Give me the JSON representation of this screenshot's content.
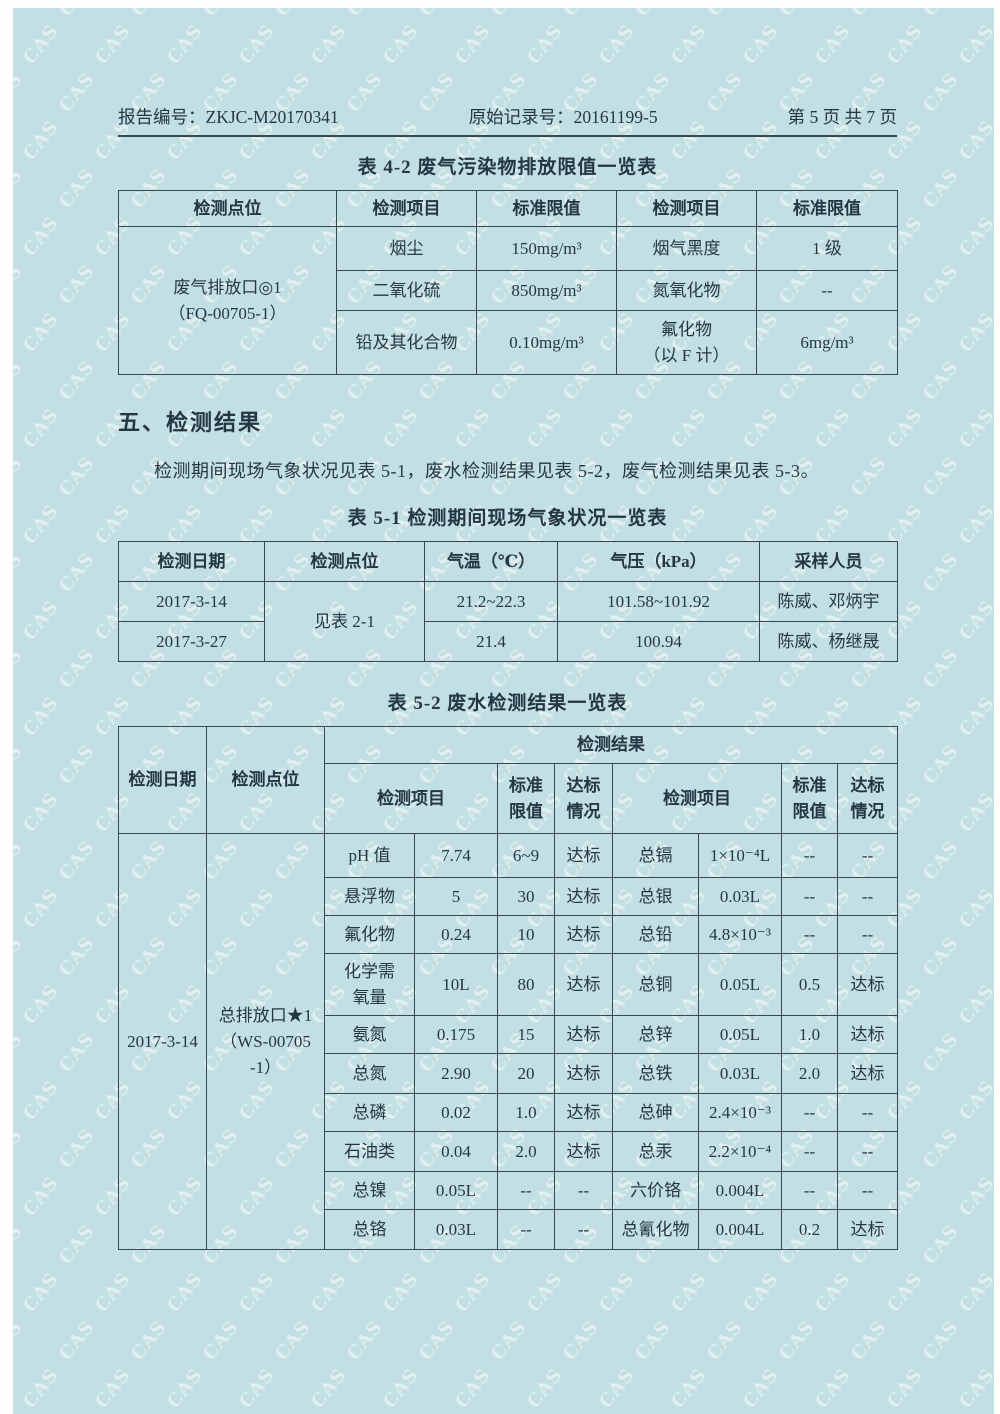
{
  "watermark": {
    "text": "CAS"
  },
  "header": {
    "report_no": "报告编号：ZKJC-M20170341",
    "record_no": "原始记录号：20161199-5",
    "page_info": "第 5 页 共 7 页"
  },
  "table42": {
    "title": "表 4-2  废气污染物排放限值一览表",
    "headers": [
      "检测点位",
      "检测项目",
      "标准限值",
      "检测项目",
      "标准限值"
    ],
    "site_line1": "废气排放口◎1",
    "site_line2": "（FQ-00705-1）",
    "rows": [
      {
        "item1": "烟尘",
        "limit1": "150mg/m³",
        "item2": "烟气黑度",
        "limit2": "1 级"
      },
      {
        "item1": "二氧化硫",
        "limit1": "850mg/m³",
        "item2": "氮氧化物",
        "limit2": "--"
      },
      {
        "item1": "铅及其化合物",
        "limit1": "0.10mg/m³",
        "item2_l1": "氟化物",
        "item2_l2": "（以 F 计）",
        "limit2": "6mg/m³"
      }
    ]
  },
  "section5": {
    "title": "五、检测结果",
    "paragraph": "检测期间现场气象状况见表 5-1，废水检测结果见表 5-2，废气检测结果见表 5-3。"
  },
  "table51": {
    "title": "表 5-1  检测期间现场气象状况一览表",
    "headers": [
      "检测日期",
      "检测点位",
      "气温（℃）",
      "气压（kPa）",
      "采样人员"
    ],
    "site": "见表 2-1",
    "rows": [
      {
        "date": "2017-3-14",
        "temp": "21.2~22.3",
        "pressure": "101.58~101.92",
        "sampler": "陈威、邓炳宇"
      },
      {
        "date": "2017-3-27",
        "temp": "21.4",
        "pressure": "100.94",
        "sampler": "陈威、杨继晟"
      }
    ]
  },
  "table52": {
    "title": "表 5-2  废水检测结果一览表",
    "col_date": "检测日期",
    "col_site": "检测点位",
    "col_result": "检测结果",
    "col_item": "检测项目",
    "col_limit_l1": "标准",
    "col_limit_l2": "限值",
    "col_status_l1": "达标",
    "col_status_l2": "情况",
    "date": "2017-3-14",
    "site_l1": "总排放口★1",
    "site_l2": "（WS-00705",
    "site_l3": "-1）",
    "rows": [
      {
        "item1": "pH 值",
        "val1": "7.74",
        "lim1": "6~9",
        "st1": "达标",
        "item2": "总镉",
        "val2": "1×10⁻⁴L",
        "lim2": "--",
        "st2": "--"
      },
      {
        "item1": "悬浮物",
        "val1": "5",
        "lim1": "30",
        "st1": "达标",
        "item2": "总银",
        "val2": "0.03L",
        "lim2": "--",
        "st2": "--"
      },
      {
        "item1": "氟化物",
        "val1": "0.24",
        "lim1": "10",
        "st1": "达标",
        "item2": "总铅",
        "val2": "4.8×10⁻³",
        "lim2": "--",
        "st2": "--"
      },
      {
        "item1_l1": "化学需",
        "item1_l2": "氧量",
        "val1": "10L",
        "lim1": "80",
        "st1": "达标",
        "item2": "总铜",
        "val2": "0.05L",
        "lim2": "0.5",
        "st2": "达标"
      },
      {
        "item1": "氨氮",
        "val1": "0.175",
        "lim1": "15",
        "st1": "达标",
        "item2": "总锌",
        "val2": "0.05L",
        "lim2": "1.0",
        "st2": "达标"
      },
      {
        "item1": "总氮",
        "val1": "2.90",
        "lim1": "20",
        "st1": "达标",
        "item2": "总铁",
        "val2": "0.03L",
        "lim2": "2.0",
        "st2": "达标"
      },
      {
        "item1": "总磷",
        "val1": "0.02",
        "lim1": "1.0",
        "st1": "达标",
        "item2": "总砷",
        "val2": "2.4×10⁻³",
        "lim2": "--",
        "st2": "--"
      },
      {
        "item1": "石油类",
        "val1": "0.04",
        "lim1": "2.0",
        "st1": "达标",
        "item2": "总汞",
        "val2": "2.2×10⁻⁴",
        "lim2": "--",
        "st2": "--"
      },
      {
        "item1": "总镍",
        "val1": "0.05L",
        "lim1": "--",
        "st1": "--",
        "item2": "六价铬",
        "val2": "0.004L",
        "lim2": "--",
        "st2": "--"
      },
      {
        "item1": "总铬",
        "val1": "0.03L",
        "lim1": "--",
        "st1": "--",
        "item2": "总氰化物",
        "val2": "0.004L",
        "lim2": "0.2",
        "st2": "达标"
      }
    ]
  }
}
